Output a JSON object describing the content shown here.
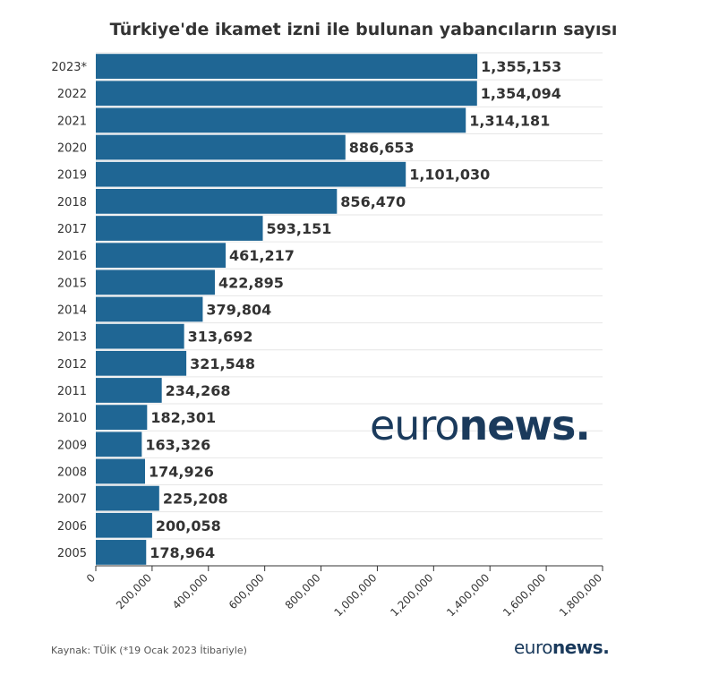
{
  "header": {
    "title": "Türkiye'de ikamet izni ile bulunan yabancıların sayısı"
  },
  "footer": {
    "source": "Kaynak: TÜİK (*19 Ocak 2023 İtibariyle)"
  },
  "logo": {
    "light": "euro",
    "bold": "news",
    "dot": "."
  },
  "colors": {
    "bar": "#1f6694",
    "label": "#333333",
    "grid": "#e6e6e6",
    "axis": "#333333"
  },
  "chart_data": {
    "type": "bar",
    "orientation": "horizontal",
    "title": "Türkiye'de ikamet izni ile bulunan yabancıların sayısı",
    "categories": [
      "2023*",
      "2022",
      "2021",
      "2020",
      "2019",
      "2018",
      "2017",
      "2016",
      "2015",
      "2014",
      "2013",
      "2012",
      "2011",
      "2010",
      "2009",
      "2008",
      "2007",
      "2006",
      "2005"
    ],
    "values": [
      1355153,
      1354094,
      1314181,
      886653,
      1101030,
      856470,
      593151,
      461217,
      422895,
      379804,
      313692,
      321548,
      234268,
      182301,
      163326,
      174926,
      225208,
      200058,
      178964
    ],
    "value_labels": [
      "1,355,153",
      "1,354,094",
      "1,314,181",
      "886,653",
      "1,101,030",
      "856,470",
      "593,151",
      "461,217",
      "422,895",
      "379,804",
      "313,692",
      "321,548",
      "234,268",
      "182,301",
      "163,326",
      "174,926",
      "225,208",
      "200,058",
      "178,964"
    ],
    "xlim": [
      0,
      1800000
    ],
    "x_ticks": [
      0,
      200000,
      400000,
      600000,
      800000,
      1000000,
      1200000,
      1400000,
      1600000,
      1800000
    ],
    "x_tick_labels": [
      "0",
      "200,000",
      "400,000",
      "600,000",
      "800,000",
      "1,000,000",
      "1,200,000",
      "1,400,000",
      "1,600,000",
      "1,800,000"
    ],
    "grid": true
  }
}
